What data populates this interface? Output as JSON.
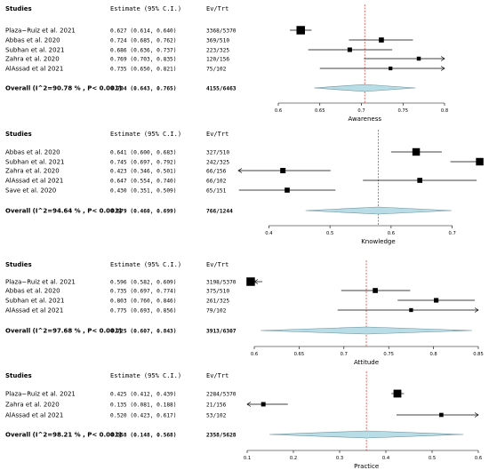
{
  "header": {
    "studies": "Studies",
    "estimate": "Estimate (95% C.I.)",
    "evtrt": "Ev/Trt"
  },
  "colors": {
    "summary_fill": "#b9dde6",
    "summary_stroke": "#6b8f9c",
    "reference_line": "#e8413a"
  },
  "chart_data": [
    {
      "type": "forest",
      "xlabel": "Awareness",
      "xlim": [
        0.6,
        0.8
      ],
      "xticks": [
        0.6,
        0.65,
        0.7,
        0.75,
        0.8
      ],
      "xtick_labels": [
        "0.6",
        "0.65",
        "0.7",
        "0.75",
        "0.8"
      ],
      "reference": 0.704,
      "studies": [
        {
          "name": "Plaza−Ruiz et al. 2021",
          "est": 0.627,
          "lo": 0.614,
          "hi": 0.64,
          "estimate_text": "0.627 (0.614, 0.640)",
          "evtrt": "3368/5370",
          "weight": 1.0
        },
        {
          "name": "Abbas et al. 2020",
          "est": 0.724,
          "lo": 0.685,
          "hi": 0.762,
          "estimate_text": "0.724 (0.685, 0.762)",
          "evtrt": "369/510",
          "weight": 0.45
        },
        {
          "name": "Subhan et al. 2021",
          "est": 0.686,
          "lo": 0.636,
          "hi": 0.737,
          "estimate_text": "0.686 (0.636, 0.737)",
          "evtrt": "223/325",
          "weight": 0.36
        },
        {
          "name": "Zahra et al. 2020",
          "est": 0.769,
          "lo": 0.703,
          "hi": 0.835,
          "estimate_text": "0.769 (0.703, 0.835)",
          "evtrt": "120/156",
          "weight": 0.28
        },
        {
          "name": "AlAssad et al 2021",
          "est": 0.735,
          "lo": 0.65,
          "hi": 0.821,
          "estimate_text": "0.735 (0.650, 0.821)",
          "evtrt": "75/102",
          "weight": 0.24
        }
      ],
      "overall": {
        "label": "Overall (I^2=90.78 % , P< 0.001)",
        "est": 0.704,
        "lo": 0.643,
        "hi": 0.765,
        "estimate_text": "0.704 (0.643, 0.765)",
        "evtrt": "4155/6463"
      }
    },
    {
      "type": "forest",
      "xlabel": "Knowledge",
      "xlim": [
        0.35,
        0.75
      ],
      "xticks": [
        0.4,
        0.5,
        0.6,
        0.7
      ],
      "xtick_labels": [
        "0.4",
        "0.5",
        "0.6",
        "0.7"
      ],
      "reference": 0.579,
      "studies": [
        {
          "name": "Abbas et al. 2020",
          "est": 0.641,
          "lo": 0.6,
          "hi": 0.683,
          "estimate_text": "0.641 (0.600, 0.683)",
          "evtrt": "327/510",
          "weight": 0.85
        },
        {
          "name": "Subhan et al. 2021",
          "est": 0.745,
          "lo": 0.697,
          "hi": 0.792,
          "estimate_text": "0.745 (0.697, 0.792)",
          "evtrt": "242/325",
          "weight": 0.85
        },
        {
          "name": "Zahra et al. 2020",
          "est": 0.423,
          "lo": 0.346,
          "hi": 0.501,
          "estimate_text": "0.423 (0.346, 0.501)",
          "evtrt": "66/156",
          "weight": 0.5
        },
        {
          "name": "AlAssad et al 2021",
          "est": 0.647,
          "lo": 0.554,
          "hi": 0.74,
          "estimate_text": "0.647 (0.554, 0.740)",
          "evtrt": "66/102",
          "weight": 0.45
        },
        {
          "name": "Save et al. 2020",
          "est": 0.43,
          "lo": 0.351,
          "hi": 0.509,
          "estimate_text": "0.430 (0.351, 0.509)",
          "evtrt": "65/151",
          "weight": 0.45
        }
      ],
      "overall": {
        "label": "Overall (I^2=94.64 % , P< 0.001)",
        "est": 0.579,
        "lo": 0.46,
        "hi": 0.699,
        "estimate_text": "0.579 (0.460, 0.699)",
        "evtrt": "766/1244"
      }
    },
    {
      "type": "forest",
      "xlabel": "Attitude",
      "xlim": [
        0.6,
        0.85
      ],
      "xticks": [
        0.6,
        0.65,
        0.7,
        0.75,
        0.8,
        0.85
      ],
      "xtick_labels": [
        "0.6",
        "0.65",
        "0.7",
        "0.75",
        "0.8",
        "0.85"
      ],
      "reference": 0.725,
      "studies": [
        {
          "name": "Plaza−Ruiz et al. 2021",
          "est": 0.596,
          "lo": 0.582,
          "hi": 0.609,
          "estimate_text": "0.596 (0.582, 0.609)",
          "evtrt": "3198/5370",
          "weight": 1.0
        },
        {
          "name": "Abbas et al. 2020",
          "est": 0.735,
          "lo": 0.697,
          "hi": 0.774,
          "estimate_text": "0.735 (0.697, 0.774)",
          "evtrt": "375/510",
          "weight": 0.45
        },
        {
          "name": "Subhan et al. 2021",
          "est": 0.803,
          "lo": 0.76,
          "hi": 0.846,
          "estimate_text": "0.803 (0.760, 0.846)",
          "evtrt": "261/325",
          "weight": 0.38
        },
        {
          "name": "AlAssad et al 2021",
          "est": 0.775,
          "lo": 0.693,
          "hi": 0.856,
          "estimate_text": "0.775 (0.693, 0.856)",
          "evtrt": "79/102",
          "weight": 0.26
        }
      ],
      "overall": {
        "label": "Overall (I^2=97.68 % , P< 0.001)",
        "est": 0.725,
        "lo": 0.607,
        "hi": 0.843,
        "estimate_text": "0.725 (0.607, 0.843)",
        "evtrt": "3913/6307"
      }
    },
    {
      "type": "forest",
      "xlabel": "Practice",
      "xlim": [
        0.1,
        0.6
      ],
      "xticks": [
        0.1,
        0.2,
        0.3,
        0.4,
        0.5,
        0.6
      ],
      "xtick_labels": [
        "0.1",
        "0.2",
        "0.3",
        "0.4",
        "0.5",
        "0.6"
      ],
      "reference": 0.358,
      "studies": [
        {
          "name": "Plaza−Ruiz et al. 2021",
          "est": 0.425,
          "lo": 0.412,
          "hi": 0.439,
          "estimate_text": "0.425 (0.412, 0.439)",
          "evtrt": "2284/5370",
          "weight": 0.9
        },
        {
          "name": "Zahra et al. 2020",
          "est": 0.135,
          "lo": 0.081,
          "hi": 0.188,
          "estimate_text": "0.135 (0.081, 0.188)",
          "evtrt": "21/156",
          "weight": 0.35
        },
        {
          "name": "AlAssad et al 2021",
          "est": 0.52,
          "lo": 0.423,
          "hi": 0.617,
          "estimate_text": "0.520 (0.423, 0.617)",
          "evtrt": "53/102",
          "weight": 0.3
        }
      ],
      "overall": {
        "label": "Overall (I^2=98.21 % , P< 0.001)",
        "est": 0.358,
        "lo": 0.148,
        "hi": 0.568,
        "estimate_text": "0.358 (0.148, 0.568)",
        "evtrt": "2358/5628"
      }
    }
  ]
}
